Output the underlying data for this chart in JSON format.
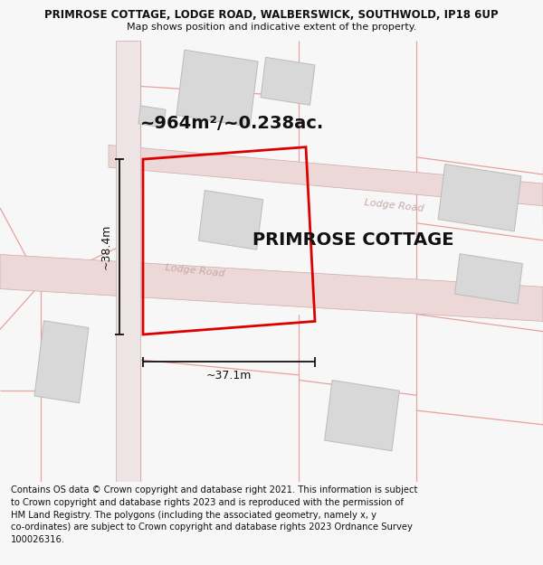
{
  "title_line1": "PRIMROSE COTTAGE, LODGE ROAD, WALBERSWICK, SOUTHWOLD, IP18 6UP",
  "title_line2": "Map shows position and indicative extent of the property.",
  "footer_text": "Contains OS data © Crown copyright and database right 2021. This information is subject to Crown copyright and database rights 2023 and is reproduced with the permission of HM Land Registry. The polygons (including the associated geometry, namely x, y co-ordinates) are subject to Crown copyright and database rights 2023 Ordnance Survey 100026316.",
  "area_label": "~964m²/~0.238ac.",
  "width_label": "~37.1m",
  "height_label": "~38.4m",
  "property_label": "PRIMROSE COTTAGE",
  "bg_color": "#f7f7f7",
  "map_bg": "#ffffff",
  "road_fill": "#edd8d8",
  "road_edge": "#ccaaaa",
  "road_centerline": "#ccaaaa",
  "building_fill": "#d8d8d8",
  "building_edge": "#bbbbbb",
  "plot_color": "#dd0000",
  "plot_lw": 2.0,
  "pink_line": "#e8a0a0",
  "pink_lw": 0.9,
  "road_label_color": "#c8a8a8",
  "text_color": "#111111",
  "dim_color": "#111111",
  "title_fontsize": 8.5,
  "subtitle_fontsize": 8.0,
  "footer_fontsize": 7.2,
  "area_fontsize": 14,
  "dim_fontsize": 9,
  "property_fontsize": 14,
  "road_label_fontsize": 8
}
